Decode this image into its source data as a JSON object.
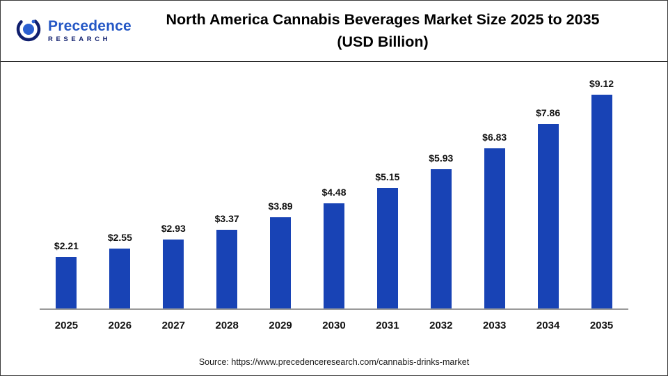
{
  "header": {
    "logo": {
      "line1": "Precedence",
      "line2": "RESEARCH"
    },
    "title_line1": "North America Cannabis Beverages Market Size 2025 to 2035",
    "title_line2": "(USD Billion)"
  },
  "chart_data": {
    "type": "bar",
    "title": "North America Cannabis Beverages Market Size 2025 to 2035 (USD Billion)",
    "categories": [
      "2025",
      "2026",
      "2027",
      "2028",
      "2029",
      "2030",
      "2031",
      "2032",
      "2033",
      "2034",
      "2035"
    ],
    "values": [
      2.21,
      2.55,
      2.93,
      3.37,
      3.89,
      4.48,
      5.15,
      5.93,
      6.83,
      7.86,
      9.12
    ],
    "labels": [
      "$2.21",
      "$2.55",
      "$2.93",
      "$3.37",
      "$3.89",
      "$4.48",
      "$5.15",
      "$5.93",
      "$6.83",
      "$7.86",
      "$9.12"
    ],
    "xlabel": "",
    "ylabel": "",
    "ylim": [
      0,
      9.8
    ],
    "grid": false,
    "legend": false,
    "bar_color": "#1843b5"
  },
  "footer": {
    "source": "Source: https://www.precedenceresearch.com/cannabis-drinks-market"
  }
}
